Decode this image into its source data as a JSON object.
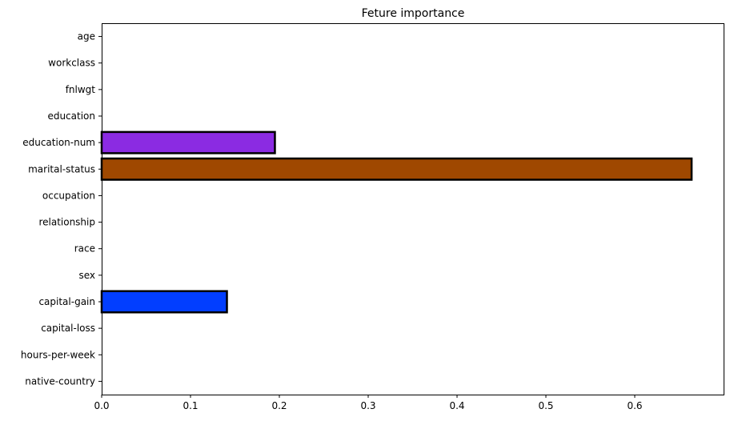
{
  "chart_data": {
    "type": "bar",
    "orientation": "horizontal",
    "title": "Feture importance",
    "xlabel": "",
    "ylabel": "",
    "xlim": [
      0,
      0.7
    ],
    "grid": false,
    "x_ticks": [
      0.0,
      0.1,
      0.2,
      0.3,
      0.4,
      0.5,
      0.6
    ],
    "x_tick_labels": [
      "0.0",
      "0.1",
      "0.2",
      "0.3",
      "0.4",
      "0.5",
      "0.6"
    ],
    "bar_edge_color": "#000000",
    "categories": [
      "age",
      "workclass",
      "fnlwgt",
      "education",
      "education-num",
      "marital-status",
      "occupation",
      "relationship",
      "race",
      "sex",
      "capital-gain",
      "capital-loss",
      "hours-per-week",
      "native-country"
    ],
    "values": [
      0.0,
      0.0,
      0.0,
      0.0,
      0.195,
      0.664,
      0.0,
      0.0,
      0.0,
      0.0,
      0.141,
      0.0,
      0.0,
      0.0
    ],
    "colors": [
      "#023eff",
      "#ff7c00",
      "#1ac938",
      "#e8000b",
      "#8b2be2",
      "#9f4800",
      "#f14cc1",
      "#a3a3a3",
      "#ffc400",
      "#00d7ff",
      "#023eff",
      "#ff7c00",
      "#1ac938",
      "#e8000b"
    ]
  }
}
